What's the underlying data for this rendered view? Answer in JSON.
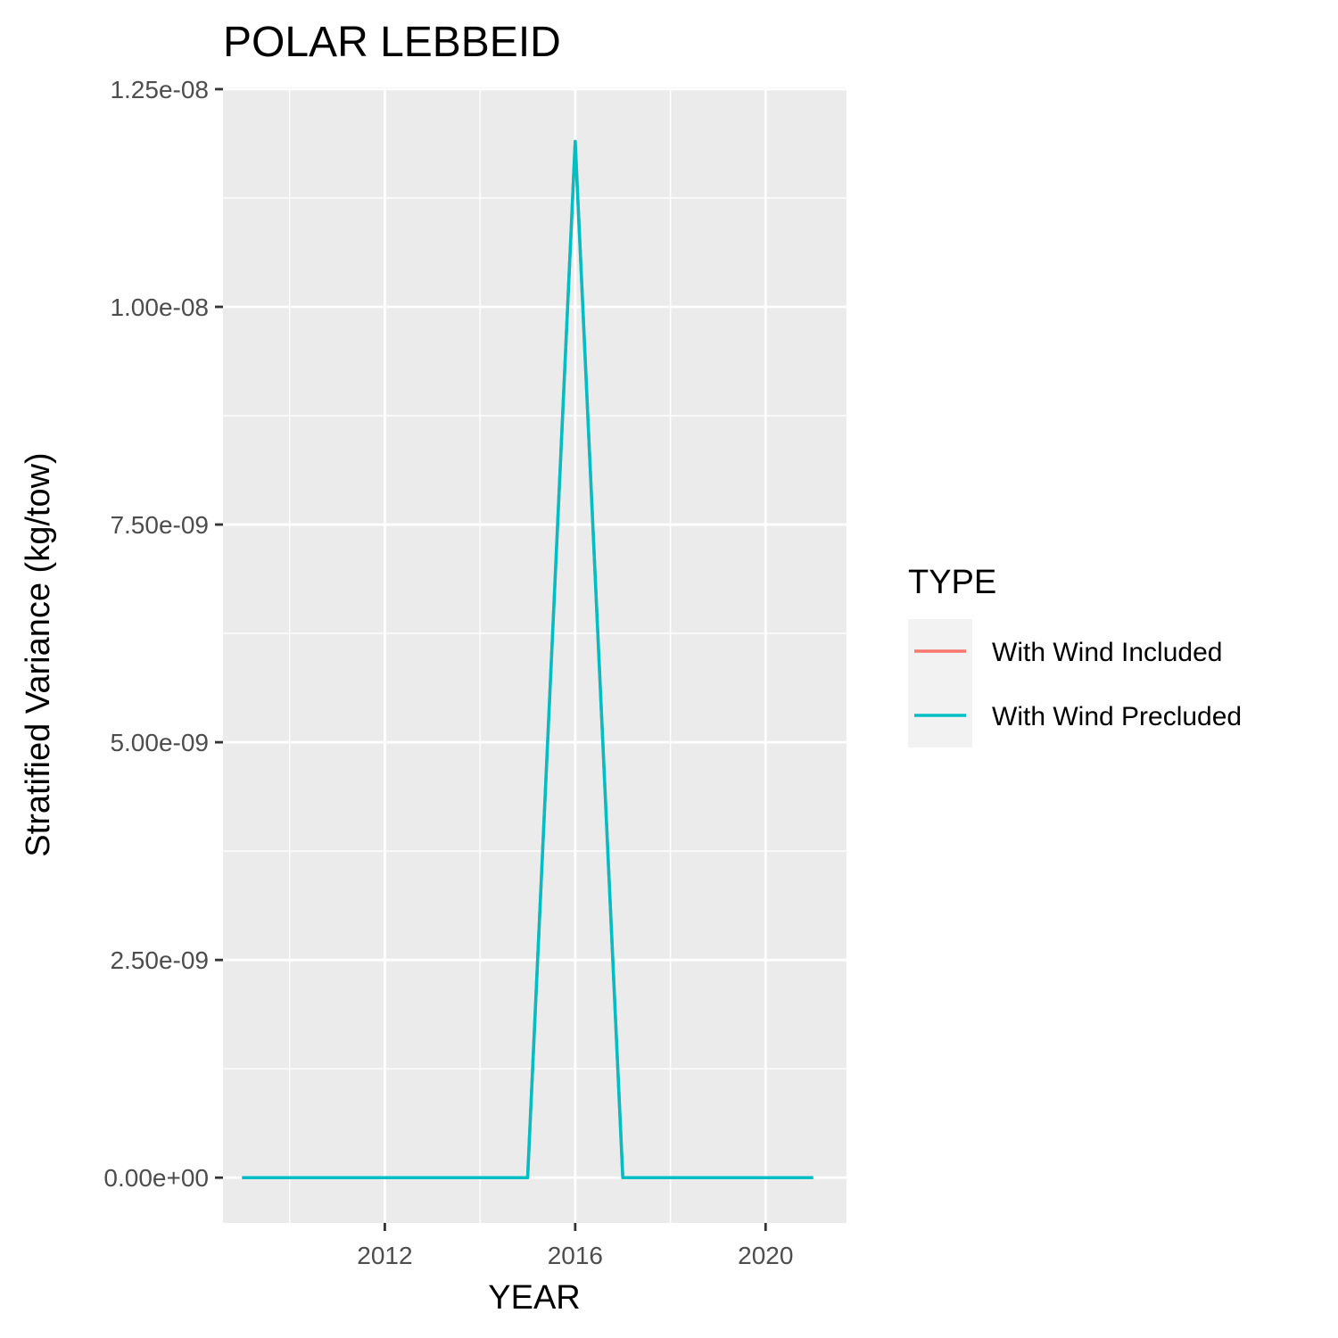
{
  "chart_data": {
    "type": "line",
    "title": "POLAR LEBBEID",
    "xlabel": "YEAR",
    "ylabel": "Stratified Variance (kg/tow)",
    "xlim": [
      2008.6,
      2021.7
    ],
    "ylim": [
      -5.2e-10,
      1.252e-08
    ],
    "x_ticks": [
      2012,
      2016,
      2020
    ],
    "x_tick_labels": [
      "2012",
      "2016",
      "2020"
    ],
    "x_minor_ticks": [
      2010,
      2014,
      2018
    ],
    "y_ticks": [
      0,
      2.5e-09,
      5e-09,
      7.5e-09,
      1e-08,
      1.25e-08
    ],
    "y_tick_labels": [
      "0.00e+00",
      "2.50e-09",
      "5.00e-09",
      "7.50e-09",
      "1.00e-08",
      "1.25e-08"
    ],
    "y_minor_ticks": [
      1.25e-09,
      3.75e-09,
      6.25e-09,
      8.75e-09,
      1.125e-08
    ],
    "grid": true,
    "legend": {
      "title": "TYPE",
      "placement": "right"
    },
    "x": [
      2009,
      2010,
      2011,
      2012,
      2013,
      2014,
      2015,
      2016,
      2017,
      2018,
      2019,
      2020,
      2021
    ],
    "series": [
      {
        "name": "With Wind Included",
        "color": "#F8766D",
        "values": [
          0,
          0,
          0,
          0,
          0,
          0,
          0,
          1.19e-08,
          0,
          0,
          0,
          0,
          0
        ]
      },
      {
        "name": "With Wind Precluded",
        "color": "#00BFC4",
        "values": [
          0,
          0,
          0,
          0,
          0,
          0,
          0,
          1.19e-08,
          0,
          0,
          0,
          0,
          0
        ]
      }
    ]
  }
}
